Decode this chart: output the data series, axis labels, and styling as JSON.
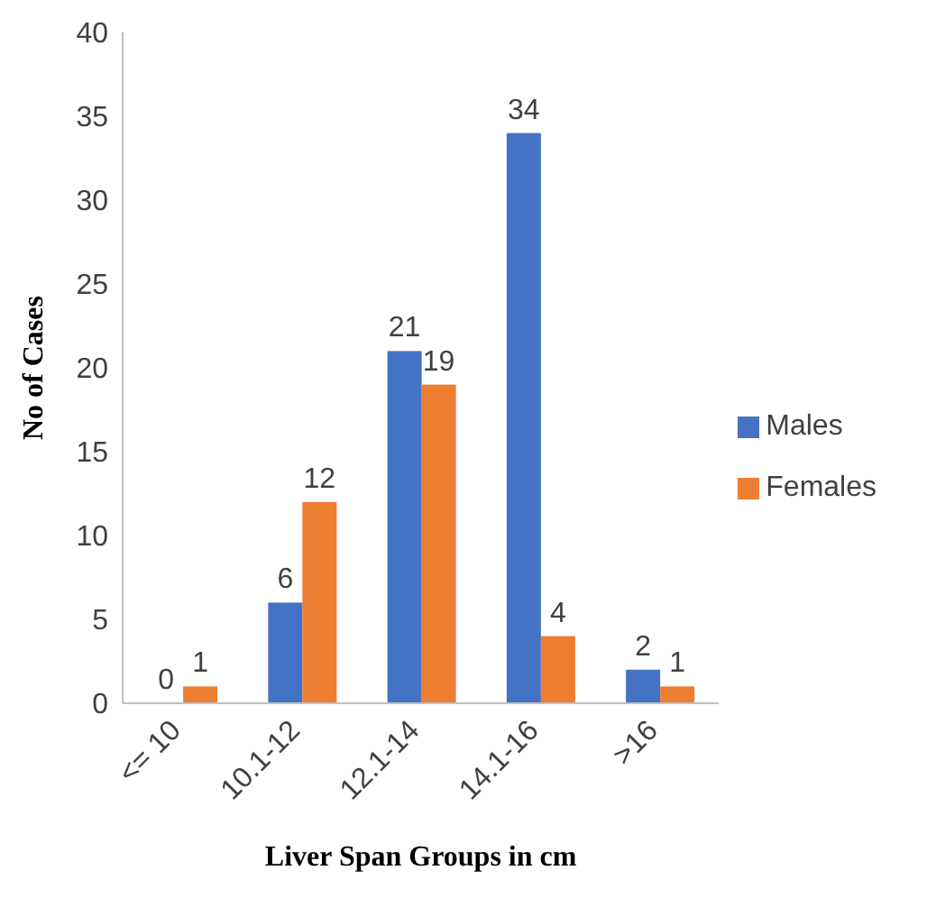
{
  "chart_data": {
    "type": "bar",
    "xlabel": "Liver Span Groups in cm",
    "ylabel": "No of Cases",
    "categories": [
      "<= 10",
      "10.1-12",
      "12.1-14",
      "14.1-16",
      ">16"
    ],
    "series": [
      {
        "name": "Males",
        "color": "#4472c4",
        "values": [
          0,
          6,
          21,
          34,
          2
        ]
      },
      {
        "name": "Females",
        "color": "#ed7d31",
        "values": [
          1,
          12,
          19,
          4,
          1
        ]
      }
    ],
    "ylim": [
      0,
      40
    ],
    "yticks": [
      0,
      5,
      10,
      15,
      20,
      25,
      30,
      35,
      40
    ],
    "grid": false,
    "legend": "right",
    "data_labels": true
  }
}
